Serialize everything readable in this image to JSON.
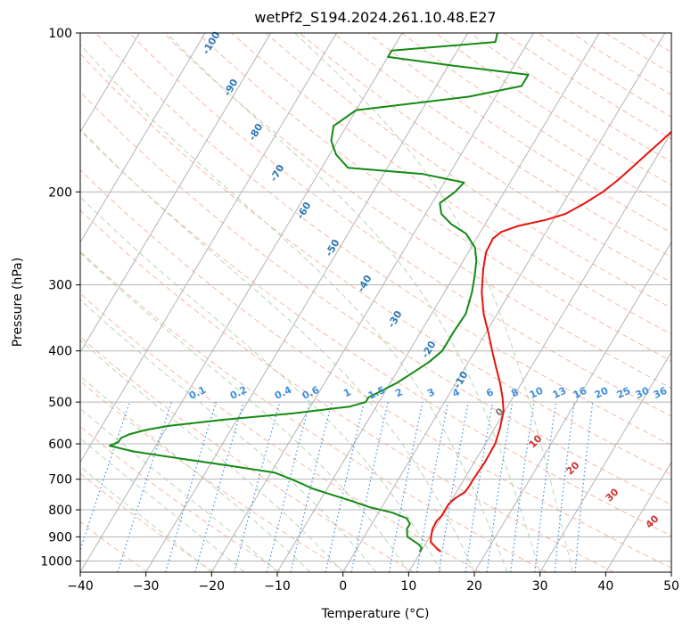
{
  "chart_data": {
    "type": "line",
    "title": "wetPf2_S194.2024.261.10.48.E27",
    "xlabel": "Temperature (°C)",
    "ylabel": "Pressure (hPa)",
    "xlim": [
      -40,
      50
    ],
    "ylim": [
      1050,
      100
    ],
    "y_scale": "log",
    "skew_deg_per_log10": 48,
    "grid": true,
    "x_ticks": [
      -40,
      -30,
      -20,
      -10,
      0,
      10,
      20,
      30,
      40,
      50
    ],
    "x_tick_labels": [
      "−40",
      "−30",
      "−20",
      "−10",
      "0",
      "10",
      "20",
      "30",
      "40",
      "50"
    ],
    "y_ticks": [
      100,
      200,
      300,
      400,
      500,
      600,
      700,
      800,
      900,
      1000
    ],
    "y_tick_labels": [
      "100",
      "200",
      "300",
      "400",
      "500",
      "600",
      "700",
      "800",
      "900",
      "1000"
    ],
    "colors": {
      "temperature": "#e8130d",
      "dewpoint": "#138a13",
      "isotherm": "#b4b4b4",
      "isobar": "#b4b4b4",
      "dry_adiabat": "#f6b9a3",
      "moist_adiabat": "#b3d9b3",
      "mixing_ratio": "#3f8fdc",
      "isotherm_label": "#2e78b8",
      "moist_label": "#cc3333"
    },
    "series": [
      {
        "name": "",
        "role": "temperature",
        "points": [
          [
            960,
            13
          ],
          [
            950,
            12.3
          ],
          [
            920,
            10.6
          ],
          [
            900,
            10.2
          ],
          [
            870,
            9.7
          ],
          [
            840,
            9.6
          ],
          [
            820,
            9.9
          ],
          [
            800,
            9.9
          ],
          [
            780,
            9.9
          ],
          [
            760,
            10.4
          ],
          [
            740,
            11.3
          ],
          [
            720,
            11.4
          ],
          [
            700,
            11.4
          ],
          [
            650,
            11.6
          ],
          [
            600,
            11.5
          ],
          [
            560,
            10.8
          ],
          [
            520,
            9.8
          ],
          [
            490,
            8.4
          ],
          [
            460,
            6.7
          ],
          [
            430,
            4.7
          ],
          [
            400,
            2.6
          ],
          [
            370,
            0.4
          ],
          [
            340,
            -2.1
          ],
          [
            310,
            -4.3
          ],
          [
            280,
            -6.2
          ],
          [
            260,
            -7.3
          ],
          [
            245,
            -7.5
          ],
          [
            238,
            -6.8
          ],
          [
            232,
            -4.8
          ],
          [
            226,
            -1.2
          ],
          [
            220,
            1.3
          ],
          [
            210,
            3.3
          ],
          [
            200,
            5
          ],
          [
            190,
            6.2
          ],
          [
            180,
            7.2
          ],
          [
            170,
            8.2
          ],
          [
            160,
            9.3
          ],
          [
            150,
            10.4
          ],
          [
            140,
            12
          ],
          [
            130,
            14
          ],
          [
            120,
            16.5
          ],
          [
            113,
            17.7
          ],
          [
            107,
            18
          ],
          [
            100,
            18
          ]
        ]
      },
      {
        "name": "",
        "role": "dewpoint",
        "points": [
          [
            960,
            9.8
          ],
          [
            945,
            9.8
          ],
          [
            930,
            9
          ],
          [
            900,
            6.6
          ],
          [
            870,
            5.8
          ],
          [
            850,
            5.8
          ],
          [
            830,
            4.8
          ],
          [
            810,
            2.1
          ],
          [
            790,
            -2
          ],
          [
            770,
            -5.1
          ],
          [
            750,
            -8.6
          ],
          [
            730,
            -12.1
          ],
          [
            700,
            -16.3
          ],
          [
            680,
            -19.5
          ],
          [
            660,
            -27
          ],
          [
            640,
            -35
          ],
          [
            620,
            -43
          ],
          [
            605,
            -47
          ],
          [
            595,
            -46
          ],
          [
            585,
            -46
          ],
          [
            575,
            -45
          ],
          [
            565,
            -43
          ],
          [
            555,
            -40
          ],
          [
            540,
            -32
          ],
          [
            525,
            -22
          ],
          [
            510,
            -14
          ],
          [
            500,
            -12
          ],
          [
            490,
            -12
          ],
          [
            475,
            -10.5
          ],
          [
            460,
            -9
          ],
          [
            440,
            -7.5
          ],
          [
            420,
            -6
          ],
          [
            400,
            -5
          ],
          [
            370,
            -5
          ],
          [
            340,
            -4.8
          ],
          [
            310,
            -5.8
          ],
          [
            290,
            -6.8
          ],
          [
            270,
            -8
          ],
          [
            255,
            -9.4
          ],
          [
            240,
            -12
          ],
          [
            230,
            -15.2
          ],
          [
            220,
            -17.6
          ],
          [
            210,
            -18.8
          ],
          [
            200,
            -17.5
          ],
          [
            192,
            -17
          ],
          [
            185,
            -24
          ],
          [
            180,
            -36
          ],
          [
            170,
            -39
          ],
          [
            160,
            -41
          ],
          [
            150,
            -42
          ],
          [
            140,
            -40
          ],
          [
            132,
            -24
          ],
          [
            126,
            -17
          ],
          [
            120,
            -17
          ],
          [
            115,
            -30
          ],
          [
            111,
            -40
          ],
          [
            108,
            -40
          ],
          [
            104,
            -25
          ],
          [
            100,
            -25.5
          ]
        ]
      }
    ],
    "isotherm_labels": [
      "-100",
      "-90",
      "-80",
      "-70",
      "-60",
      "-50",
      "-40",
      "-30",
      "-20",
      "-10"
    ],
    "mixing_ratio_labels": [
      "0.1",
      "0.2",
      "0.4",
      "0.6",
      "1",
      "1.5",
      "2",
      "3",
      "4",
      "6",
      "8",
      "10",
      "13",
      "16",
      "20",
      "25",
      "30",
      "36"
    ],
    "moist_adiabat_labels": [
      "0",
      "10",
      "20",
      "30",
      "40"
    ]
  }
}
